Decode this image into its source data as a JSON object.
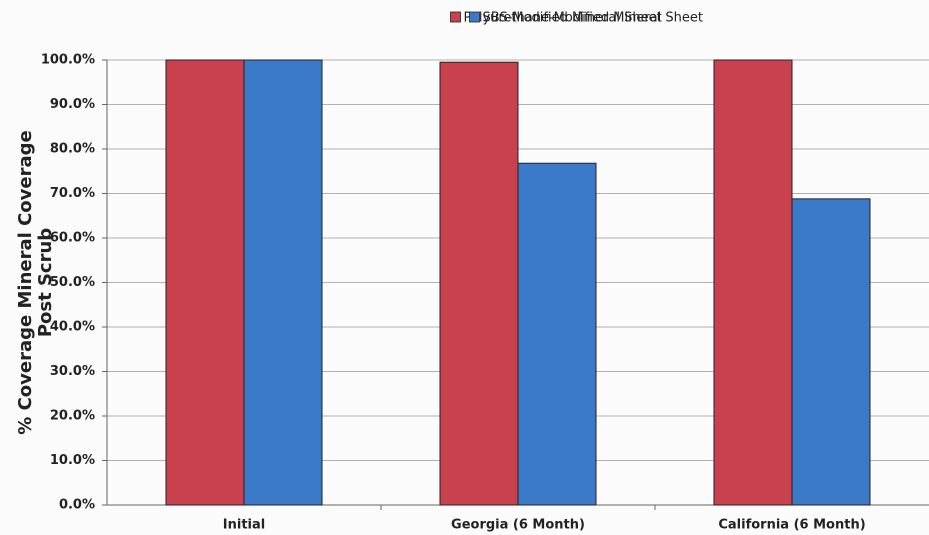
{
  "chart_data": {
    "type": "bar",
    "y_label": [
      "% Coverage Mineral Coverage",
      "Post Scrub"
    ],
    "categories": [
      "Initial",
      "Georgia (6 Month)",
      "California (6 Month)"
    ],
    "series": [
      {
        "name": "Polyurethane-Modified Mineral Sheet",
        "color": "#c9414f",
        "values": [
          100,
          99.5,
          100
        ]
      },
      {
        "name": "SBS-Modified Mineral Sheet",
        "color": "#3b79c9",
        "values": [
          100,
          76.8,
          68.8
        ]
      }
    ],
    "ylim": [
      0,
      100
    ],
    "yticks": [
      {
        "value": 0,
        "label": "0.0%"
      },
      {
        "value": 10,
        "label": "10.0%"
      },
      {
        "value": 20,
        "label": "20.0%"
      },
      {
        "value": 30,
        "label": "30.0%"
      },
      {
        "value": 40,
        "label": "40.0%"
      },
      {
        "value": 50,
        "label": "50.0%"
      },
      {
        "value": 60,
        "label": "60.0%"
      },
      {
        "value": 70,
        "label": "70.0%"
      },
      {
        "value": 80,
        "label": "80.0%"
      },
      {
        "value": 90,
        "label": "90.0%"
      },
      {
        "value": 100,
        "label": "100.0%"
      }
    ],
    "grid": true,
    "legend": "top"
  }
}
